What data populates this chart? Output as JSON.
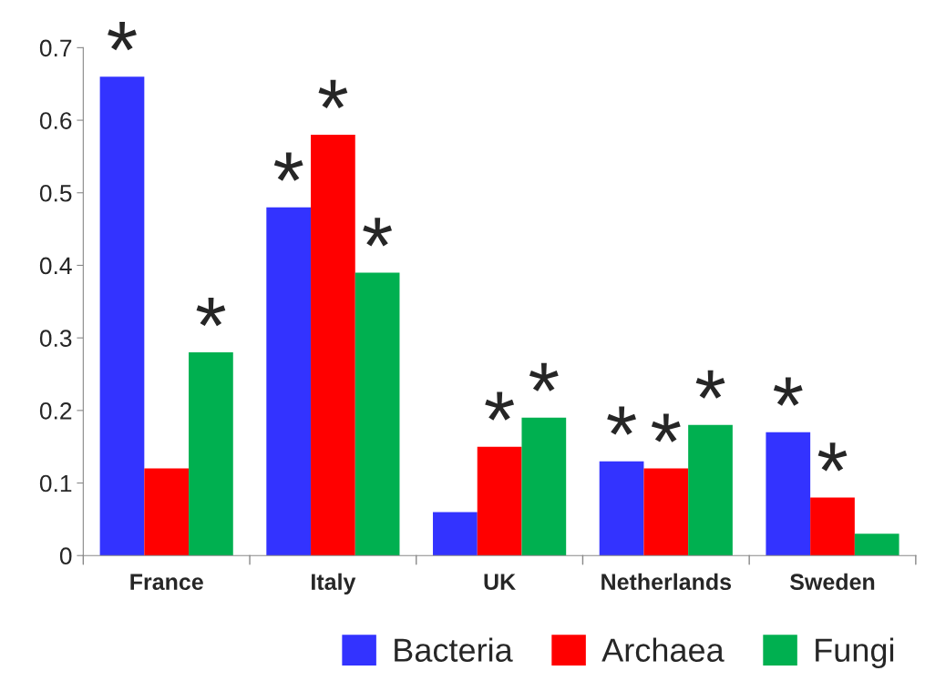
{
  "chart_data": {
    "type": "bar",
    "categories": [
      "France",
      "Italy",
      "UK",
      "Netherlands",
      "Sweden"
    ],
    "series": [
      {
        "name": "Bacteria",
        "color": "#3333ff",
        "values": [
          0.66,
          0.48,
          0.06,
          0.13,
          0.17
        ],
        "value_labels": [
          "*",
          "*",
          null,
          "*",
          "*"
        ]
      },
      {
        "name": "Archaea",
        "color": "#ff0000",
        "values": [
          0.12,
          0.58,
          0.15,
          0.12,
          0.08
        ],
        "value_labels": [
          null,
          "*",
          "*",
          "*",
          "*"
        ]
      },
      {
        "name": "Fungi",
        "color": "#00b050",
        "values": [
          0.28,
          0.39,
          0.19,
          0.18,
          0.03
        ],
        "value_labels": [
          "*",
          "*",
          "*",
          "*",
          null
        ]
      }
    ],
    "ylim": [
      0,
      0.7
    ],
    "yticks": [
      0,
      0.1,
      0.2,
      0.3,
      0.4,
      0.5,
      0.6,
      0.7
    ],
    "grid": false,
    "legend": "bottom right"
  }
}
